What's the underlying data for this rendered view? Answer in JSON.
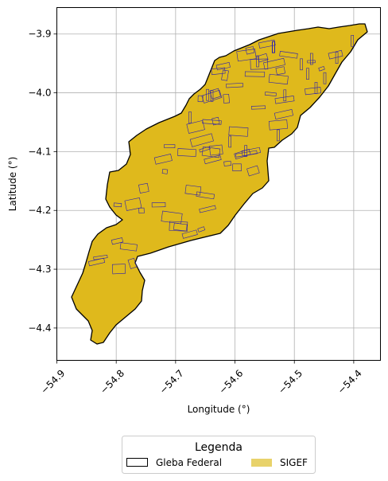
{
  "chart_data": {
    "type": "map",
    "xlabel": "Longitude (°)",
    "ylabel": "Latitude (°)",
    "xlim": [
      -54.9,
      -54.355
    ],
    "ylim": [
      -4.455,
      -3.855
    ],
    "xticks": [
      -54.9,
      -54.8,
      -54.7,
      -54.6,
      -54.5,
      -54.4
    ],
    "xtick_labels": [
      "−54.9",
      "−54.8",
      "−54.7",
      "−54.6",
      "−54.5",
      "−54.4"
    ],
    "yticks": [
      -3.9,
      -4.0,
      -4.1,
      -4.2,
      -4.3,
      -4.4
    ],
    "ytick_labels": [
      "−3.9",
      "−4.0",
      "−4.1",
      "−4.2",
      "−4.3",
      "−4.4"
    ],
    "grid": true,
    "legend": {
      "title": "Legenda",
      "placement": "bottom-center",
      "entries": [
        {
          "label": "Gleba Federal",
          "color": "#ffffff",
          "edge": "#000000"
        },
        {
          "label": "SIGEF",
          "color": "#e8d26a",
          "edge": "#e8d26a"
        }
      ]
    },
    "layers": [
      {
        "name": "Gleba Federal",
        "color": "#ffffff",
        "edge": "#000000"
      },
      {
        "name": "SIGEF",
        "color": "#dfb91c",
        "edge": "#2a1fae"
      }
    ]
  }
}
